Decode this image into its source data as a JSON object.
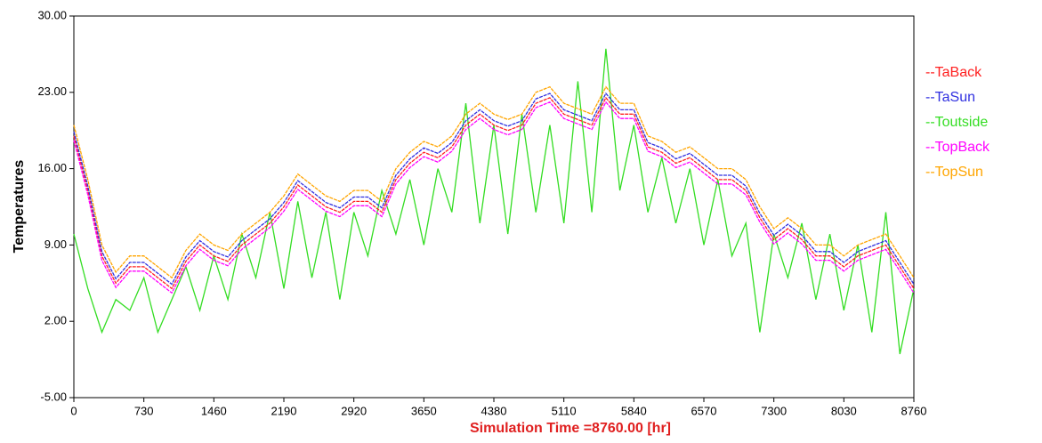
{
  "chart_data": {
    "type": "line",
    "xlabel": "Simulation Time =8760.00 [hr]",
    "ylabel": "Temperatures",
    "x": [
      0,
      146,
      292,
      438,
      584,
      730,
      876,
      1022,
      1168,
      1314,
      1460,
      1606,
      1752,
      1898,
      2044,
      2190,
      2336,
      2482,
      2628,
      2774,
      2920,
      3066,
      3212,
      3358,
      3504,
      3650,
      3796,
      3942,
      4088,
      4234,
      4380,
      4526,
      4672,
      4818,
      4964,
      5110,
      5256,
      5402,
      5548,
      5694,
      5840,
      5986,
      6132,
      6278,
      6424,
      6570,
      6716,
      6862,
      7008,
      7154,
      7300,
      7446,
      7592,
      7738,
      7884,
      8030,
      8176,
      8322,
      8468,
      8614,
      8760
    ],
    "series": [
      {
        "name": "--Toutside",
        "color": "#33dd22",
        "values": [
          10,
          5,
          1,
          4,
          3,
          6,
          1,
          4,
          7,
          3,
          8,
          4,
          10,
          6,
          12,
          5,
          13,
          6,
          12,
          4,
          12,
          8,
          14,
          10,
          15,
          9,
          16,
          12,
          22,
          11,
          20,
          10,
          21,
          12,
          20,
          11,
          24,
          12,
          27,
          14,
          20,
          12,
          17,
          11,
          16,
          9,
          15,
          8,
          11,
          1,
          10,
          6,
          11,
          4,
          10,
          3,
          9,
          1,
          12,
          -1,
          5
        ]
      },
      {
        "name": "--TaBack",
        "color": "#ff2020",
        "values": [
          19,
          14,
          8,
          5.5,
          7,
          7,
          6,
          5,
          7.5,
          9,
          8,
          7.5,
          9,
          10,
          11,
          12.5,
          14.5,
          13.5,
          12.5,
          12,
          13,
          13,
          12,
          15,
          16.5,
          17.5,
          17,
          18,
          20,
          21,
          20,
          19.5,
          20,
          22,
          22.5,
          21,
          20.5,
          20,
          22.5,
          21,
          21,
          18,
          17.5,
          16.5,
          17,
          16,
          15,
          15,
          14,
          11.5,
          9.5,
          10.5,
          9.5,
          8,
          8,
          7,
          8,
          8.5,
          9,
          7,
          5
        ]
      },
      {
        "name": "--TaSun",
        "color": "#3030e0",
        "values": [
          19.4,
          14.4,
          8.4,
          5.9,
          7.4,
          7.4,
          6.4,
          5.4,
          7.9,
          9.4,
          8.4,
          7.9,
          9.4,
          10.4,
          11.4,
          12.9,
          14.9,
          13.9,
          12.9,
          12.4,
          13.4,
          13.4,
          12.4,
          15.4,
          16.9,
          17.9,
          17.4,
          18.4,
          20.4,
          21.4,
          20.4,
          19.9,
          20.4,
          22.4,
          22.9,
          21.4,
          20.9,
          20.4,
          22.9,
          21.4,
          21.4,
          18.4,
          17.9,
          16.9,
          17.4,
          16.4,
          15.4,
          15.4,
          14.4,
          11.9,
          9.9,
          10.9,
          9.9,
          8.4,
          8.4,
          7.4,
          8.4,
          8.9,
          9.4,
          7.4,
          5.4
        ]
      },
      {
        "name": "--TopBack",
        "color": "#ff00ff",
        "values": [
          18.6,
          13.6,
          7.6,
          5.1,
          6.6,
          6.6,
          5.6,
          4.6,
          7.1,
          8.6,
          7.6,
          7.1,
          8.6,
          9.6,
          10.6,
          12.1,
          14.1,
          13.1,
          12.1,
          11.6,
          12.6,
          12.6,
          11.6,
          14.6,
          16.1,
          17.1,
          16.6,
          17.6,
          19.6,
          20.6,
          19.6,
          19.1,
          19.6,
          21.6,
          22.1,
          20.6,
          20.1,
          19.6,
          22.1,
          20.6,
          20.6,
          17.6,
          17.1,
          16.1,
          16.6,
          15.6,
          14.6,
          14.6,
          13.6,
          11.1,
          9.1,
          10.1,
          9.1,
          7.6,
          7.6,
          6.6,
          7.6,
          8.1,
          8.6,
          6.6,
          4.6
        ]
      },
      {
        "name": "--TopSun",
        "color": "#ffa500",
        "values": [
          20,
          15,
          9,
          6.5,
          8,
          8,
          7,
          6,
          8.5,
          10,
          9,
          8.5,
          10,
          11,
          12,
          13.5,
          15.5,
          14.5,
          13.5,
          13,
          14,
          14,
          13,
          16,
          17.5,
          18.5,
          18,
          19,
          21,
          22,
          21,
          20.5,
          21,
          23,
          23.5,
          22,
          21.5,
          21,
          23.5,
          22,
          22,
          19,
          18.5,
          17.5,
          18,
          17,
          16,
          16,
          15,
          12.5,
          10.5,
          11.5,
          10.5,
          9,
          9,
          8,
          9,
          9.5,
          10,
          8,
          6
        ]
      }
    ],
    "legend_order": [
      1,
      2,
      0,
      3,
      4
    ],
    "xlim": [
      0,
      8760
    ],
    "xticks": [
      0,
      730,
      1460,
      2190,
      2920,
      3650,
      4380,
      5110,
      5840,
      6570,
      7300,
      8030,
      8760
    ],
    "ylim": [
      -5,
      30
    ],
    "yticks": [
      {
        "value": -5,
        "label": "-5.00"
      },
      {
        "value": 2,
        "label": "2.00"
      },
      {
        "value": 9,
        "label": "9.00"
      },
      {
        "value": 16,
        "label": "16.00"
      },
      {
        "value": 23,
        "label": "23.00"
      },
      {
        "value": 30,
        "label": "30.00"
      }
    ]
  }
}
